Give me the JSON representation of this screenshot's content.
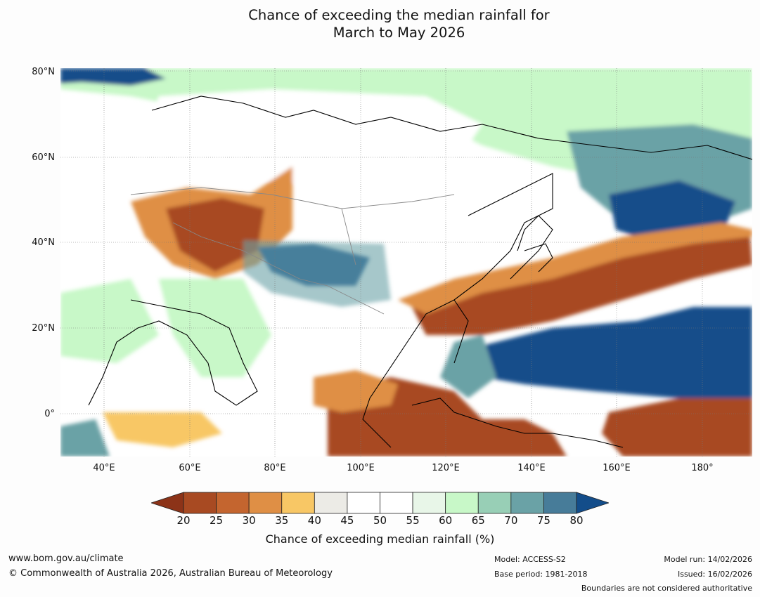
{
  "title_line1": "Chance of exceeding the median rainfall for",
  "title_line2": "March to May 2026",
  "lat_labels": [
    "80°N",
    "60°N",
    "40°N",
    "20°N",
    "0°"
  ],
  "lon_labels": [
    "40°E",
    "60°E",
    "80°E",
    "100°E",
    "120°E",
    "140°E",
    "160°E",
    "180°"
  ],
  "colorbar": {
    "label": "Chance of exceeding median rainfall (%)",
    "ticks": [
      "20",
      "25",
      "30",
      "35",
      "40",
      "45",
      "50",
      "55",
      "60",
      "65",
      "70",
      "75",
      "80"
    ],
    "below_color": "#8c3318",
    "above_color": "#134d8a",
    "bin_colors": [
      "#a84a22",
      "#c4652f",
      "#df8f45",
      "#f8c765",
      "#ecebe6",
      "#ffffff",
      "#ffffff",
      "#e8f6e8",
      "#c8f8c8",
      "#98cfb6",
      "#6aa2a6",
      "#477c99"
    ]
  },
  "footer": {
    "website": "www.bom.gov.au/climate",
    "copyright": "© Commonwealth of Australia 2026, Australian Bureau of Meteorology",
    "model": "Model: ACCESS-S2",
    "base_period": "Base period: 1981-2018",
    "model_run": "Model run: 14/02/2026",
    "issued": "Issued: 16/02/2026",
    "boundaries_note": "Boundaries are not considered authoritative"
  }
}
